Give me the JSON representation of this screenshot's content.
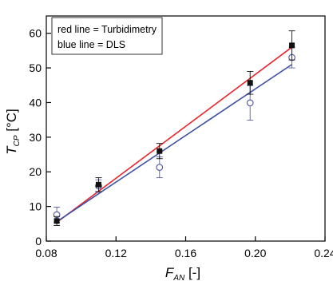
{
  "chart_data": {
    "type": "scatter",
    "title": "",
    "xlabel": {
      "main": "F",
      "sub": "AN",
      "unit": " [-]"
    },
    "ylabel": {
      "main": "T",
      "sub": "CP",
      "unit": " [°C]"
    },
    "xlim": [
      0.08,
      0.24
    ],
    "ylim": [
      0,
      65
    ],
    "x_ticks": [
      "0.08",
      "0.12",
      "0.16",
      "0.20",
      "0.24"
    ],
    "y_ticks": [
      "0",
      "10",
      "20",
      "30",
      "40",
      "50",
      "60"
    ],
    "grid": false,
    "legend_placement": "top-left",
    "legend": [
      "red line = Turbidimetry",
      "blue line = DLS"
    ],
    "colors": {
      "red_line": "#e8262b",
      "blue_line": "#3d4fa3",
      "open_marker": "#5b5ea6",
      "filled_marker": "#111111"
    },
    "series": [
      {
        "marker": "filled-square",
        "x": [
          0.086,
          0.11,
          0.145,
          0.197,
          0.221
        ],
        "y": [
          5.8,
          16.3,
          26.0,
          45.7,
          56.5
        ],
        "error": [
          1.3,
          2.0,
          2.2,
          3.3,
          4.2
        ]
      },
      {
        "marker": "open-circle",
        "x": [
          0.086,
          0.11,
          0.145,
          0.197,
          0.221
        ],
        "y": [
          7.6,
          15.9,
          21.3,
          39.9,
          53.0
        ],
        "error": [
          2.2,
          1.8,
          3.0,
          5.0,
          3.0
        ]
      }
    ],
    "fit_lines": [
      {
        "color": "red",
        "x": [
          0.086,
          0.221
        ],
        "y": [
          5.4,
          56.0
        ]
      },
      {
        "color": "blue",
        "x": [
          0.086,
          0.221
        ],
        "y": [
          5.6,
          51.0
        ]
      }
    ]
  }
}
